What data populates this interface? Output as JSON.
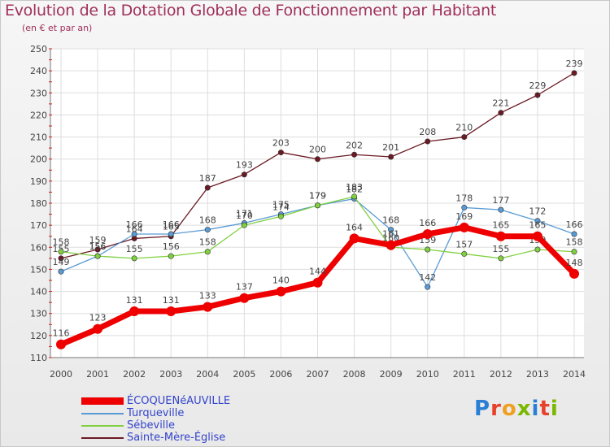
{
  "header": {
    "title": "Evolution de la Dotation Globale de Fonctionnement par Habitant",
    "subtitle": "(en € et par an)"
  },
  "logo": {
    "text": "Proxiti",
    "colors": [
      "#2a7fd4",
      "#e8402a",
      "#f0a020",
      "#7ab800",
      "#2a7fd4",
      "#e8402a",
      "#7ab800"
    ]
  },
  "chart_data": {
    "type": "line",
    "title": "Evolution de la Dotation Globale de Fonctionnement par Habitant",
    "subtitle": "(en € et par an)",
    "xlabel": "",
    "ylabel": "",
    "ylim": [
      110,
      250
    ],
    "yticks": [
      110,
      120,
      130,
      140,
      150,
      160,
      170,
      180,
      190,
      200,
      210,
      220,
      230,
      240,
      250
    ],
    "x": [
      "2000",
      "2001",
      "2002",
      "2003",
      "2004",
      "2005",
      "2006",
      "2007",
      "2008",
      "2009",
      "2010",
      "2011",
      "2012",
      "2013",
      "2014"
    ],
    "grid": true,
    "legend_position": "bottom-left",
    "series": [
      {
        "name": "Sainte-Mère-Église",
        "color": "#6b1a24",
        "values": [
          155,
          159,
          164,
          165,
          187,
          193,
          203,
          200,
          202,
          201,
          208,
          210,
          221,
          229,
          239
        ]
      },
      {
        "name": "Turqueville",
        "color": "#5a9bd5",
        "values": [
          149,
          156,
          166,
          166,
          168,
          171,
          175,
          179,
          182,
          168,
          142,
          178,
          177,
          172,
          166
        ]
      },
      {
        "name": "Sébeville",
        "color": "#80d040",
        "values": [
          158,
          156,
          155,
          156,
          158,
          170,
          174,
          179,
          183,
          160,
          159,
          157,
          155,
          159,
          158
        ]
      },
      {
        "name": "ÉCOQUENéAUVILLE",
        "color": "#ee0000",
        "values": [
          116,
          123,
          131,
          131,
          133,
          137,
          140,
          144,
          164,
          161,
          166,
          169,
          165,
          165,
          148
        ]
      }
    ],
    "legend_order": [
      "ÉCOQUENéAUVILLE",
      "Turqueville",
      "Sébeville",
      "Sainte-Mère-Église"
    ]
  }
}
